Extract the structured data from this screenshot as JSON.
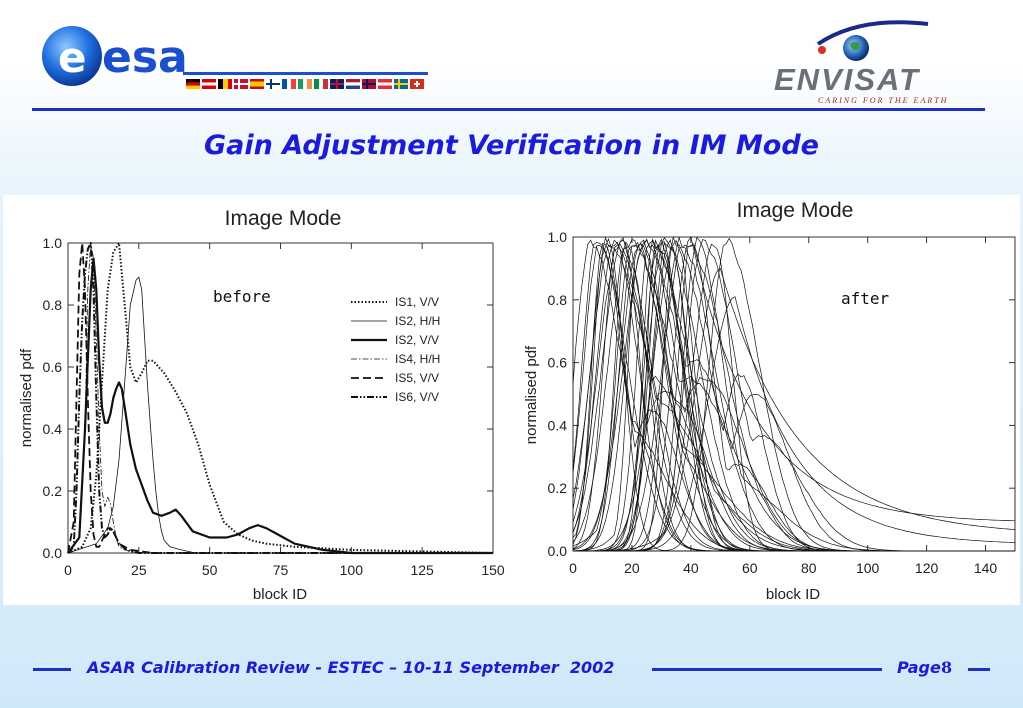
{
  "header": {
    "esa_logo_text": "esa",
    "envisat_logo_text": "ENVISAT",
    "envisat_tagline": "CARING FOR THE EARTH",
    "brand_blue": "#1d2fc4"
  },
  "title": "Gain Adjustment Verification in IM Mode",
  "footer": {
    "text": "ASAR Calibration Review - ESTEC – 10-11 September  2002",
    "page_label": "Page",
    "page_number": "8"
  },
  "chart_data": [
    {
      "type": "line",
      "title": "Image Mode",
      "xlabel": "block ID",
      "ylabel": "normalised pdf",
      "xlim": [
        0,
        150
      ],
      "ylim": [
        0,
        1.0
      ],
      "xticks": [
        "0",
        "25",
        "50",
        "75",
        "100",
        "125",
        "150"
      ],
      "yticks": [
        "0.0",
        "0.2",
        "0.4",
        "0.6",
        "0.8",
        "1.0"
      ],
      "annotation": "before",
      "legend_position": "right",
      "series": [
        {
          "name": "IS1, V/V",
          "style": "dotted",
          "x": [
            0,
            5,
            8,
            10,
            12,
            14,
            16,
            18,
            20,
            22,
            24,
            26,
            28,
            30,
            34,
            38,
            42,
            46,
            50,
            55,
            60,
            65,
            70,
            80,
            100,
            150
          ],
          "y": [
            0,
            0.02,
            0.08,
            0.25,
            0.55,
            0.85,
            0.97,
            1.0,
            0.8,
            0.6,
            0.55,
            0.58,
            0.62,
            0.62,
            0.58,
            0.52,
            0.45,
            0.35,
            0.22,
            0.1,
            0.06,
            0.04,
            0.03,
            0.02,
            0.01,
            0
          ]
        },
        {
          "name": "IS2, H/H",
          "style": "thin",
          "x": [
            0,
            10,
            14,
            16,
            18,
            20,
            22,
            24,
            25,
            26,
            27,
            28,
            29,
            30,
            31,
            32,
            33,
            34,
            36,
            40,
            45,
            50
          ],
          "y": [
            0,
            0.03,
            0.08,
            0.15,
            0.3,
            0.55,
            0.8,
            0.88,
            0.89,
            0.85,
            0.7,
            0.55,
            0.42,
            0.3,
            0.2,
            0.12,
            0.07,
            0.04,
            0.02,
            0.01,
            0,
            0
          ]
        },
        {
          "name": "IS2, V/V",
          "style": "thick",
          "x": [
            0,
            4,
            6,
            8,
            9,
            10,
            11,
            12,
            13,
            14,
            15,
            16,
            17,
            18,
            19,
            20,
            22,
            24,
            26,
            28,
            30,
            33,
            36,
            38,
            40,
            44,
            50,
            56,
            60,
            64,
            67,
            70,
            74,
            80,
            90,
            100,
            150
          ],
          "y": [
            0,
            0.05,
            0.4,
            0.85,
            0.95,
            0.85,
            0.62,
            0.47,
            0.42,
            0.42,
            0.45,
            0.5,
            0.53,
            0.55,
            0.53,
            0.47,
            0.35,
            0.27,
            0.22,
            0.17,
            0.13,
            0.12,
            0.13,
            0.14,
            0.12,
            0.07,
            0.05,
            0.05,
            0.06,
            0.08,
            0.09,
            0.08,
            0.06,
            0.03,
            0.01,
            0,
            0
          ]
        },
        {
          "name": "IS4, H/H",
          "style": "dashdot",
          "x": [
            0,
            4,
            6,
            7,
            8,
            9,
            10,
            11,
            12,
            13,
            14,
            15,
            16,
            17,
            18,
            20,
            25,
            150
          ],
          "y": [
            0,
            0.05,
            0.4,
            0.85,
            1.0,
            0.95,
            0.7,
            0.4,
            0.2,
            0.15,
            0.18,
            0.16,
            0.1,
            0.05,
            0.02,
            0.01,
            0,
            0
          ]
        },
        {
          "name": "IS5, V/V",
          "style": "dashed",
          "x": [
            0,
            2,
            3,
            4,
            5,
            6,
            7,
            8,
            9,
            10,
            11,
            12,
            13,
            14,
            15,
            16,
            17,
            18,
            20,
            22,
            26,
            30,
            150
          ],
          "y": [
            0,
            0.1,
            0.5,
            0.9,
            1.0,
            0.85,
            0.5,
            0.2,
            0.06,
            0.02,
            0.02,
            0.04,
            0.06,
            0.08,
            0.08,
            0.07,
            0.05,
            0.03,
            0.02,
            0.01,
            0.005,
            0,
            0
          ]
        },
        {
          "name": "IS6, V/V",
          "style": "dashdotdot",
          "x": [
            0,
            2,
            3,
            4,
            5,
            6,
            7,
            8,
            9,
            10,
            11,
            12,
            13,
            14,
            15,
            16,
            17,
            18,
            20,
            22,
            25,
            150
          ],
          "y": [
            0,
            0.02,
            0.2,
            0.5,
            0.75,
            0.9,
            0.98,
            1.0,
            0.85,
            0.5,
            0.2,
            0.08,
            0.05,
            0.06,
            0.08,
            0.07,
            0.05,
            0.03,
            0.015,
            0.005,
            0,
            0
          ]
        }
      ]
    },
    {
      "type": "line",
      "title": "Image Mode",
      "xlabel": "block ID",
      "ylabel": "normalised pdf",
      "xlim": [
        0,
        150
      ],
      "ylim": [
        0,
        1.0
      ],
      "xticks": [
        "0",
        "20",
        "40",
        "60",
        "80",
        "100",
        "120",
        "140"
      ],
      "yticks": [
        "0.0",
        "0.2",
        "0.4",
        "0.6",
        "0.8",
        "1.0"
      ],
      "annotation": "after",
      "note": "many overlapping thin curves (one per beam/polarisation); peak block IDs cluster between about 5 and 55, several long tails extend to 150",
      "series_groups": {
        "peak_block_ids": [
          6,
          8,
          9,
          10,
          11,
          12,
          13,
          14,
          15,
          16,
          17,
          18,
          19,
          20,
          21,
          22,
          23,
          24,
          25,
          26,
          27,
          28,
          29,
          30,
          31,
          32,
          33,
          34,
          35,
          36,
          38,
          40,
          42,
          44,
          48,
          52
        ],
        "secondary_peaks": [
          [
            30,
            0.45
          ],
          [
            32,
            0.57
          ],
          [
            36,
            0.36
          ],
          [
            38,
            0.53
          ],
          [
            40,
            0.33
          ],
          [
            45,
            0.85
          ],
          [
            50,
            0.9
          ],
          [
            55,
            0.81
          ]
        ],
        "tail_values_at_150": [
          0.09,
          0.05,
          0.02
        ]
      }
    }
  ]
}
